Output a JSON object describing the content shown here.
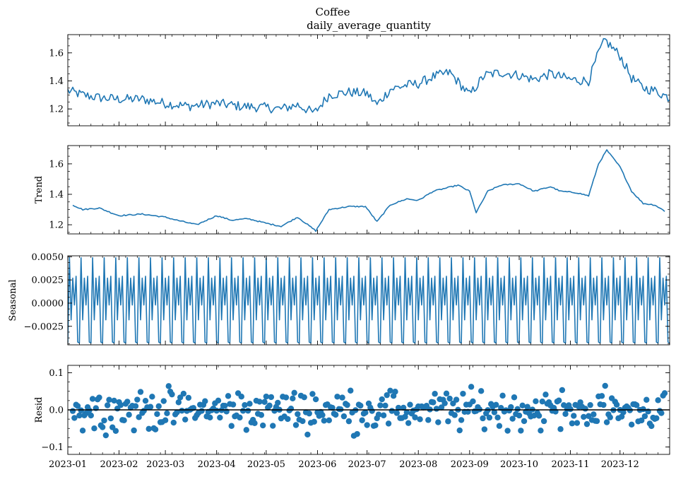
{
  "suptitle": "Coffee",
  "colors": {
    "series": "#1f77b4",
    "zero_line": "#000000"
  },
  "chart_data": [
    {
      "type": "line",
      "title": "daily_average_quantity",
      "ylabel": "",
      "ylim": [
        1.08,
        1.73
      ],
      "yticks": [
        1.2,
        1.4,
        1.6
      ],
      "ytick_labels": [
        "1.2",
        "1.4",
        "1.6"
      ],
      "grid": false,
      "x_start": "2023-01-01",
      "x_end": "2023-12-31",
      "anchors": [
        [
          "2023-01-01",
          1.33
        ],
        [
          "2023-01-10",
          1.3
        ],
        [
          "2023-01-20",
          1.28
        ],
        [
          "2023-02-01",
          1.27
        ],
        [
          "2023-02-15",
          1.27
        ],
        [
          "2023-03-01",
          1.24
        ],
        [
          "2023-03-15",
          1.22
        ],
        [
          "2023-04-01",
          1.24
        ],
        [
          "2023-04-15",
          1.22
        ],
        [
          "2023-05-01",
          1.21
        ],
        [
          "2023-05-10",
          1.2
        ],
        [
          "2023-05-20",
          1.23
        ],
        [
          "2023-05-30",
          1.17
        ],
        [
          "2023-06-08",
          1.3
        ],
        [
          "2023-06-20",
          1.32
        ],
        [
          "2023-07-01",
          1.31
        ],
        [
          "2023-07-07",
          1.23
        ],
        [
          "2023-07-15",
          1.34
        ],
        [
          "2023-07-25",
          1.37
        ],
        [
          "2023-08-01",
          1.38
        ],
        [
          "2023-08-10",
          1.43
        ],
        [
          "2023-08-20",
          1.46
        ],
        [
          "2023-09-01",
          1.3
        ],
        [
          "2023-09-10",
          1.44
        ],
        [
          "2023-09-20",
          1.46
        ],
        [
          "2023-10-01",
          1.44
        ],
        [
          "2023-10-10",
          1.41
        ],
        [
          "2023-10-20",
          1.45
        ],
        [
          "2023-11-01",
          1.41
        ],
        [
          "2023-11-12",
          1.4
        ],
        [
          "2023-11-18",
          1.6
        ],
        [
          "2023-11-22",
          1.69
        ],
        [
          "2023-12-01",
          1.58
        ],
        [
          "2023-12-08",
          1.42
        ],
        [
          "2023-12-15",
          1.35
        ],
        [
          "2023-12-22",
          1.33
        ],
        [
          "2023-12-31",
          1.28
        ]
      ],
      "noise": 0.035,
      "render": "line"
    },
    {
      "type": "line",
      "title": "",
      "ylabel": "Trend",
      "ylim": [
        1.14,
        1.72
      ],
      "yticks": [
        1.2,
        1.4,
        1.6
      ],
      "ytick_labels": [
        "1.2",
        "1.4",
        "1.6"
      ],
      "grid": false,
      "x_start": "2023-01-04",
      "x_end": "2023-12-28",
      "anchors": [
        [
          "2023-01-04",
          1.33
        ],
        [
          "2023-01-10",
          1.3
        ],
        [
          "2023-01-20",
          1.31
        ],
        [
          "2023-01-27",
          1.28
        ],
        [
          "2023-02-01",
          1.26
        ],
        [
          "2023-02-15",
          1.27
        ],
        [
          "2023-03-01",
          1.25
        ],
        [
          "2023-03-08",
          1.23
        ],
        [
          "2023-03-20",
          1.2
        ],
        [
          "2023-04-01",
          1.26
        ],
        [
          "2023-04-10",
          1.23
        ],
        [
          "2023-04-20",
          1.24
        ],
        [
          "2023-05-01",
          1.21
        ],
        [
          "2023-05-10",
          1.19
        ],
        [
          "2023-05-20",
          1.25
        ],
        [
          "2023-05-31",
          1.16
        ],
        [
          "2023-06-08",
          1.3
        ],
        [
          "2023-06-20",
          1.32
        ],
        [
          "2023-06-30",
          1.32
        ],
        [
          "2023-07-07",
          1.22
        ],
        [
          "2023-07-15",
          1.33
        ],
        [
          "2023-07-25",
          1.37
        ],
        [
          "2023-08-01",
          1.36
        ],
        [
          "2023-08-10",
          1.42
        ],
        [
          "2023-08-25",
          1.46
        ],
        [
          "2023-09-01",
          1.42
        ],
        [
          "2023-09-05",
          1.28
        ],
        [
          "2023-09-12",
          1.42
        ],
        [
          "2023-09-20",
          1.46
        ],
        [
          "2023-10-01",
          1.47
        ],
        [
          "2023-10-10",
          1.42
        ],
        [
          "2023-10-20",
          1.45
        ],
        [
          "2023-10-26",
          1.42
        ],
        [
          "2023-11-05",
          1.41
        ],
        [
          "2023-11-12",
          1.39
        ],
        [
          "2023-11-18",
          1.6
        ],
        [
          "2023-11-23",
          1.69
        ],
        [
          "2023-12-01",
          1.58
        ],
        [
          "2023-12-08",
          1.42
        ],
        [
          "2023-12-15",
          1.34
        ],
        [
          "2023-12-22",
          1.33
        ],
        [
          "2023-12-28",
          1.29
        ]
      ],
      "noise": 0.004,
      "render": "line"
    },
    {
      "type": "line",
      "title": "",
      "ylabel": "Seasonal",
      "ylim": [
        -0.0045,
        0.0051
      ],
      "yticks": [
        -0.0025,
        0.0,
        0.0025,
        0.005
      ],
      "ytick_labels": [
        "−0.0025",
        "0.0000",
        "0.0025",
        "0.0050"
      ],
      "grid": false,
      "x_start": "2023-01-01",
      "x_end": "2023-12-31",
      "period_pattern": [
        -0.0043,
        0.0049,
        -0.0018,
        0.0027,
        -0.0002,
        0.0029,
        -0.0042
      ],
      "render": "line"
    },
    {
      "type": "scatter",
      "title": "",
      "ylabel": "Resid",
      "ylim": [
        -0.12,
        0.12
      ],
      "yticks": [
        -0.1,
        0.0,
        0.1
      ],
      "ytick_labels": [
        "−0.1",
        "0.0",
        "0.1"
      ],
      "grid": false,
      "x_start": "2023-01-04",
      "x_end": "2023-12-28",
      "spread": 0.035,
      "zero_line": true,
      "render": "scatter"
    }
  ],
  "xaxis": {
    "start": "2023-01-01",
    "end": "2023-12-31",
    "ticks": [
      "2023-01-01",
      "2023-02-01",
      "2023-03-01",
      "2023-04-01",
      "2023-05-01",
      "2023-06-01",
      "2023-07-01",
      "2023-08-01",
      "2023-09-01",
      "2023-10-01",
      "2023-11-01",
      "2023-12-01"
    ],
    "tick_labels": [
      "2023-01",
      "2023-02",
      "2023-03",
      "2023-04",
      "2023-05",
      "2023-06",
      "2023-07",
      "2023-08",
      "2023-09",
      "2023-10",
      "2023-11",
      "2023-12"
    ]
  }
}
